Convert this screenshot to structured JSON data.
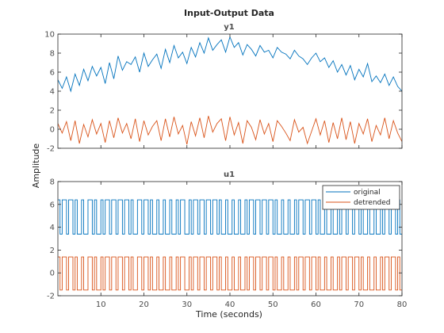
{
  "colors": {
    "original": "#0072bd",
    "detrended": "#d95319",
    "axis": "#262626",
    "text": "#4d4d4d"
  },
  "chart_data": {
    "type": "line",
    "title": "Input-Output Data",
    "xlabel": "Time (seconds)",
    "ylabel": "Amplitude",
    "xlim": [
      0,
      80
    ],
    "xticks": [
      10,
      20,
      30,
      40,
      50,
      60,
      70,
      80
    ],
    "grid": false,
    "legend": {
      "placement": "top-right",
      "entries": [
        "original",
        "detrended"
      ]
    },
    "panels": [
      {
        "title": "y1",
        "ylim": [
          -2,
          10
        ],
        "yticks": [
          -2,
          0,
          2,
          4,
          6,
          8,
          10
        ],
        "show_xticklabels": false,
        "series": [
          {
            "name": "original",
            "color": "#0072bd",
            "x": [
              0,
              1,
              2,
              3,
              4,
              5,
              6,
              7,
              8,
              9,
              10,
              11,
              12,
              13,
              14,
              15,
              16,
              17,
              18,
              19,
              20,
              21,
              22,
              23,
              24,
              25,
              26,
              27,
              28,
              29,
              30,
              31,
              32,
              33,
              34,
              35,
              36,
              37,
              38,
              39,
              40,
              41,
              42,
              43,
              44,
              45,
              46,
              47,
              48,
              49,
              50,
              51,
              52,
              53,
              54,
              55,
              56,
              57,
              58,
              59,
              60,
              61,
              62,
              63,
              64,
              65,
              66,
              67,
              68,
              69,
              70,
              71,
              72,
              73,
              74,
              75,
              76,
              77,
              78,
              79,
              80
            ],
            "y": [
              5.2,
              4.3,
              5.5,
              4.0,
              5.8,
              4.6,
              6.3,
              5.1,
              6.6,
              5.6,
              6.5,
              4.8,
              7.0,
              5.3,
              7.7,
              6.2,
              7.1,
              6.8,
              7.6,
              6.0,
              8.0,
              6.6,
              7.3,
              7.9,
              6.4,
              8.4,
              7.0,
              8.8,
              7.5,
              8.1,
              6.9,
              8.6,
              7.6,
              9.1,
              8.0,
              9.6,
              8.3,
              8.9,
              9.4,
              8.1,
              9.7,
              8.6,
              9.1,
              7.8,
              8.9,
              8.4,
              7.7,
              8.8,
              8.1,
              8.3,
              7.5,
              8.6,
              8.1,
              7.9,
              7.4,
              8.3,
              7.7,
              7.4,
              6.8,
              7.5,
              8.0,
              7.1,
              7.5,
              6.5,
              7.2,
              6.0,
              6.8,
              5.7,
              6.7,
              5.2,
              6.3,
              5.5,
              6.9,
              5.0,
              5.6,
              4.9,
              5.8,
              4.6,
              5.5,
              4.5,
              4.0
            ]
          },
          {
            "name": "detrended",
            "color": "#d95319",
            "x": [
              0,
              1,
              2,
              3,
              4,
              5,
              6,
              7,
              8,
              9,
              10,
              11,
              12,
              13,
              14,
              15,
              16,
              17,
              18,
              19,
              20,
              21,
              22,
              23,
              24,
              25,
              26,
              27,
              28,
              29,
              30,
              31,
              32,
              33,
              34,
              35,
              36,
              37,
              38,
              39,
              40,
              41,
              42,
              43,
              44,
              45,
              46,
              47,
              48,
              49,
              50,
              51,
              52,
              53,
              54,
              55,
              56,
              57,
              58,
              59,
              60,
              61,
              62,
              63,
              64,
              65,
              66,
              67,
              68,
              69,
              70,
              71,
              72,
              73,
              74,
              75,
              76,
              77,
              78,
              79,
              80
            ],
            "y": [
              0.6,
              -0.4,
              0.8,
              -1.2,
              0.9,
              -1.5,
              0.5,
              -0.8,
              1.0,
              -0.5,
              0.6,
              -1.4,
              0.9,
              -0.9,
              1.2,
              -0.4,
              0.6,
              -1.0,
              1.1,
              -1.3,
              0.9,
              -0.6,
              0.3,
              0.9,
              -1.2,
              1.1,
              -0.8,
              1.3,
              -0.5,
              0.4,
              -1.6,
              0.8,
              -0.7,
              1.2,
              -0.9,
              1.4,
              -0.3,
              0.6,
              1.1,
              -1.2,
              1.3,
              -0.6,
              0.7,
              -1.5,
              0.9,
              0.2,
              -1.1,
              1.0,
              -0.5,
              0.6,
              -1.3,
              0.9,
              0.3,
              -0.4,
              -1.2,
              1.0,
              -0.3,
              0.2,
              -1.5,
              -0.2,
              1.1,
              -0.6,
              0.9,
              -1.4,
              0.7,
              -1.0,
              1.2,
              -1.1,
              0.8,
              -1.5,
              0.6,
              -0.5,
              1.1,
              -1.3,
              0.4,
              -0.6,
              1.2,
              -1.0,
              0.9,
              -0.4,
              -1.3
            ]
          }
        ]
      },
      {
        "title": "u1",
        "ylim": [
          -2,
          8
        ],
        "yticks": [
          -2,
          0,
          2,
          4,
          6,
          8
        ],
        "show_xticklabels": true,
        "series": [
          {
            "name": "original",
            "color": "#0072bd",
            "step": true,
            "low": 3.4,
            "high": 6.4,
            "switch_times": [
              0.5,
              1.0,
              2.0,
              2.5,
              3.5,
              4.0,
              4.5,
              5.5,
              6.0,
              7.0,
              8.0,
              8.5,
              9.0,
              10.0,
              10.5,
              11.0,
              12.0,
              12.5,
              13.5,
              14.0,
              15.0,
              15.5,
              16.5,
              17.0,
              17.5,
              18.5,
              19.5,
              20.0,
              21.0,
              21.5,
              22.0,
              23.0,
              23.5,
              24.5,
              25.0,
              26.0,
              26.5,
              27.5,
              28.0,
              28.5,
              29.5,
              30.5,
              31.0,
              31.5,
              32.5,
              33.0,
              34.0,
              34.5,
              35.5,
              36.0,
              37.0,
              37.5,
              38.0,
              39.0,
              39.5,
              40.5,
              41.0,
              42.0,
              42.5,
              43.5,
              44.0,
              44.5,
              45.5,
              46.0,
              47.0,
              47.5,
              48.5,
              49.0,
              50.0,
              50.5,
              51.0,
              52.0,
              52.5,
              53.5,
              54.0,
              55.0,
              55.5,
              56.0,
              57.0,
              57.5,
              58.5,
              59.0,
              60.0,
              60.5,
              61.0,
              62.0,
              62.5,
              63.5,
              64.0,
              65.0,
              65.5,
              66.0,
              67.0,
              67.5,
              68.5,
              69.0,
              70.0,
              70.5,
              71.0,
              72.0,
              72.5,
              73.5,
              74.0,
              75.0,
              75.5,
              76.0,
              77.0,
              77.5,
              78.5,
              79.0,
              79.5
            ]
          },
          {
            "name": "detrended",
            "color": "#d95319",
            "step": true,
            "low": -1.5,
            "high": 1.4,
            "switch_times": [
              0.5,
              1.0,
              2.0,
              2.5,
              3.5,
              4.0,
              4.5,
              5.5,
              6.0,
              7.0,
              8.0,
              8.5,
              9.0,
              10.0,
              10.5,
              11.0,
              12.0,
              12.5,
              13.5,
              14.0,
              15.0,
              15.5,
              16.5,
              17.0,
              17.5,
              18.5,
              19.5,
              20.0,
              21.0,
              21.5,
              22.0,
              23.0,
              23.5,
              24.5,
              25.0,
              26.0,
              26.5,
              27.5,
              28.0,
              28.5,
              29.5,
              30.5,
              31.0,
              31.5,
              32.5,
              33.0,
              34.0,
              34.5,
              35.5,
              36.0,
              37.0,
              37.5,
              38.0,
              39.0,
              39.5,
              40.5,
              41.0,
              42.0,
              42.5,
              43.5,
              44.0,
              44.5,
              45.5,
              46.0,
              47.0,
              47.5,
              48.5,
              49.0,
              50.0,
              50.5,
              51.0,
              52.0,
              52.5,
              53.5,
              54.0,
              55.0,
              55.5,
              56.0,
              57.0,
              57.5,
              58.5,
              59.0,
              60.0,
              60.5,
              61.0,
              62.0,
              62.5,
              63.5,
              64.0,
              65.0,
              65.5,
              66.0,
              67.0,
              67.5,
              68.5,
              69.0,
              70.0,
              70.5,
              71.0,
              72.0,
              72.5,
              73.5,
              74.0,
              75.0,
              75.5,
              76.0,
              77.0,
              77.5,
              78.5,
              79.0,
              79.5
            ]
          }
        ]
      }
    ]
  }
}
